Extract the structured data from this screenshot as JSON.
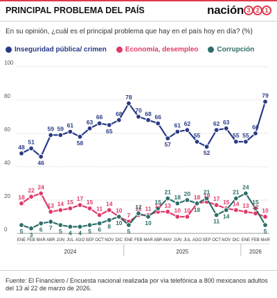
{
  "header": {
    "title": "PRINCIPAL PROBLEMA DEL PAÍS",
    "brand_name": "nación",
    "brand_digits": [
      "3",
      "2",
      "1"
    ],
    "brand_color": "#e03a4e"
  },
  "question": "En su opinión, ¿cuál es el principal problema que hay en el país hoy en día? (%)",
  "source": "Fuente: El Financiero / Encuesta nacional realizada por vía telefónica a 800 mexicanos adultos del 13 al 22 de marzo de 2026.",
  "chart_data": {
    "type": "line",
    "title": "",
    "xlabel": "",
    "ylabel": "",
    "ylim": [
      0,
      100
    ],
    "yticks": [
      0,
      20,
      40,
      60,
      80,
      100
    ],
    "grid": true,
    "legend_position": "top",
    "categories": [
      "ENE",
      "FEB",
      "MAR",
      "ABR",
      "JUN",
      "JUL",
      "AGO",
      "SEP",
      "OCT",
      "NOV",
      "DIC",
      "ENE",
      "FEB",
      "MAR",
      "ABR",
      "MAY",
      "JUN",
      "JUL",
      "AGO",
      "SEP",
      "OCT",
      "NOV",
      "DIC",
      "ENE",
      "FEB",
      "MAR"
    ],
    "years": [
      {
        "label": "2024",
        "start": 0,
        "end": 10
      },
      {
        "label": "2025",
        "start": 11,
        "end": 22
      },
      {
        "label": "2026",
        "start": 23,
        "end": 25
      }
    ],
    "series": [
      {
        "name": "Inseguridad pública/ crimen",
        "color": "#283a86",
        "values": [
          48,
          51,
          46,
          59,
          59,
          61,
          58,
          63,
          66,
          65,
          68,
          78,
          70,
          68,
          66,
          57,
          61,
          62,
          55,
          52,
          62,
          63,
          55,
          55,
          60,
          79
        ]
      },
      {
        "name": "Economía, desempleo",
        "color": "#e03a68",
        "values": [
          18,
          22,
          24,
          13,
          14,
          15,
          17,
          15,
          11,
          14,
          10,
          7,
          11,
          11,
          13,
          13,
          10,
          10,
          18,
          19,
          17,
          15,
          14,
          13,
          12,
          10
        ]
      },
      {
        "name": "Corrupción",
        "color": "#2e6e6a",
        "values": [
          5,
          3,
          6,
          7,
          5,
          4,
          4,
          5,
          6,
          8,
          10,
          5,
          12,
          10,
          15,
          21,
          18,
          20,
          18,
          21,
          11,
          14,
          21,
          24,
          15,
          5
        ]
      }
    ]
  }
}
